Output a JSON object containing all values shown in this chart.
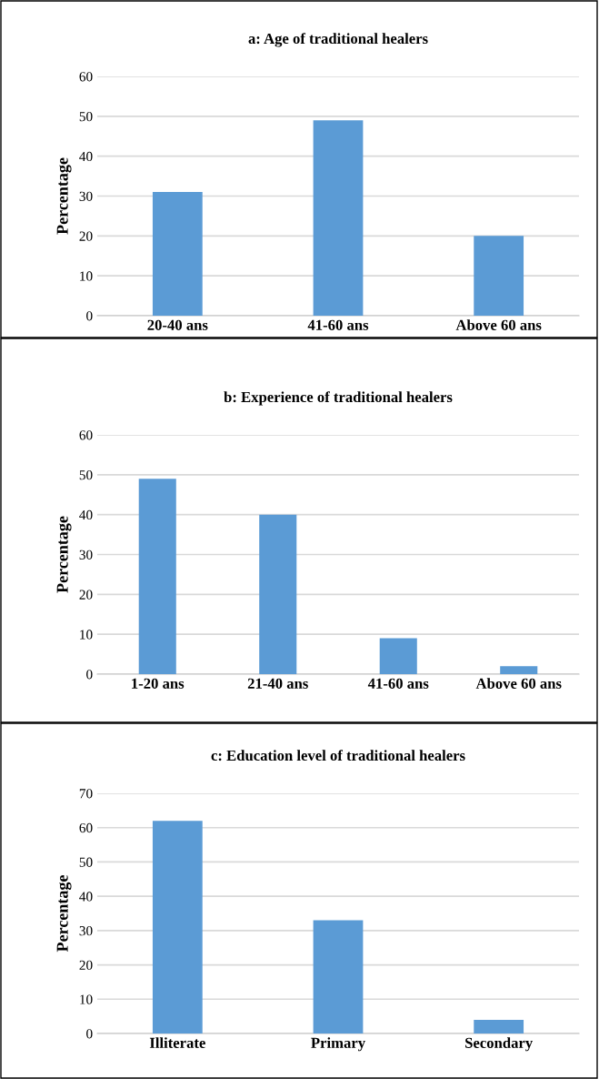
{
  "chart_data": [
    {
      "type": "bar",
      "title": "a: Age of traditional healers",
      "ylabel": "Percentage",
      "categories": [
        "20-40 ans",
        "41-60 ans",
        "Above 60 ans"
      ],
      "values": [
        31,
        49,
        20
      ],
      "color": "#5b9bd5",
      "ylim": [
        0,
        60
      ],
      "yticks": [
        0,
        10,
        20,
        30,
        40,
        50,
        60
      ],
      "grid": "y"
    },
    {
      "type": "bar",
      "title": "b: Experience of traditional healers",
      "ylabel": "Percentage",
      "categories": [
        "1-20 ans",
        "21-40 ans",
        "41-60 ans",
        "Above 60 ans"
      ],
      "values": [
        49,
        40,
        9,
        2
      ],
      "color": "#5b9bd5",
      "ylim": [
        0,
        60
      ],
      "yticks": [
        0,
        10,
        20,
        30,
        40,
        50,
        60
      ],
      "grid": "y"
    },
    {
      "type": "bar",
      "title": "c: Education level of traditional healers",
      "ylabel": "Percentage",
      "categories": [
        "Illiterate",
        "Primary",
        "Secondary"
      ],
      "values": [
        62,
        33,
        4
      ],
      "color": "#5b9bd5",
      "ylim": [
        0,
        70
      ],
      "yticks": [
        0,
        10,
        20,
        30,
        40,
        50,
        60,
        70
      ],
      "grid": "y"
    }
  ]
}
